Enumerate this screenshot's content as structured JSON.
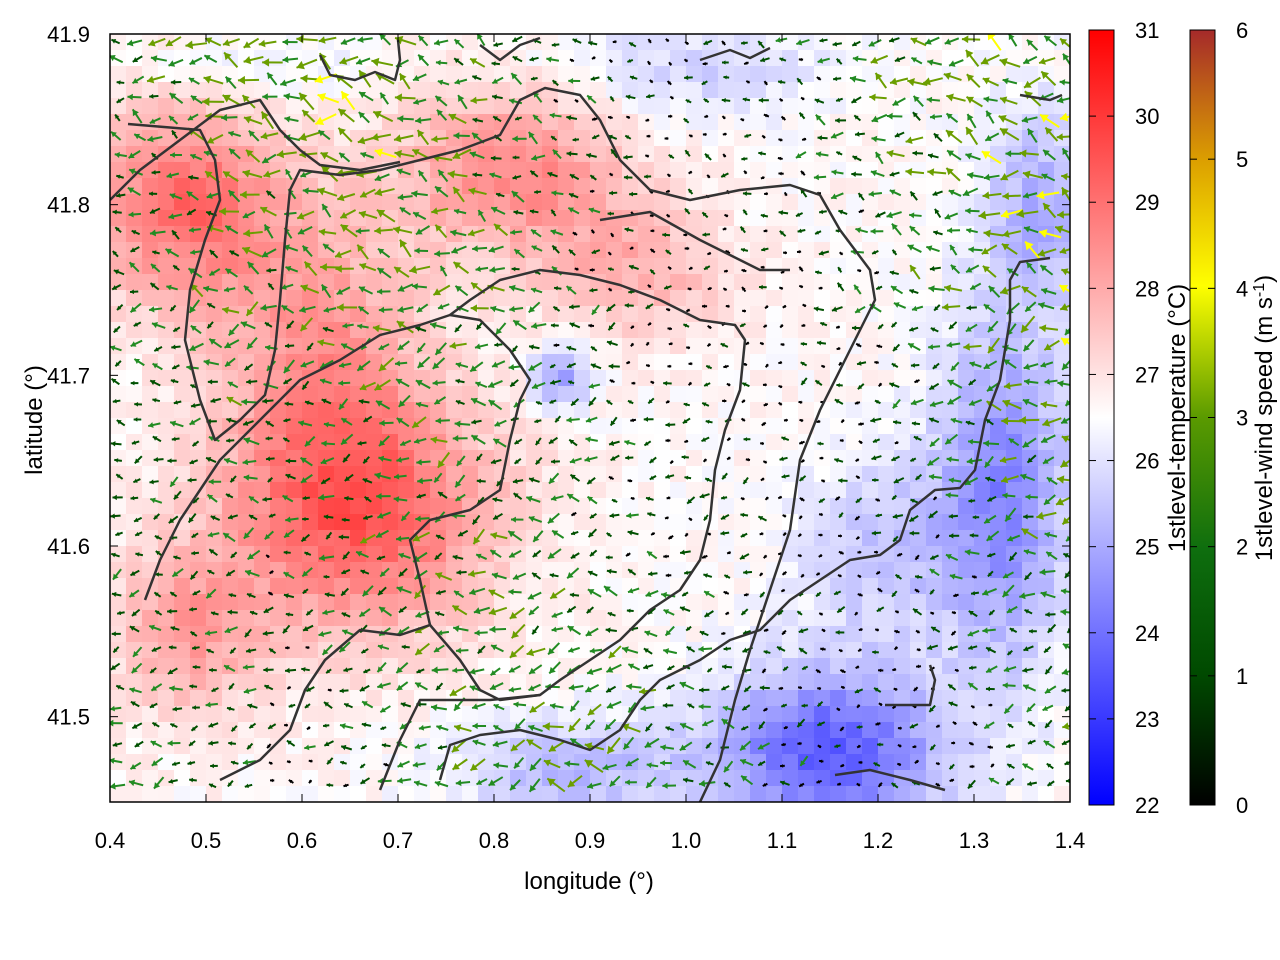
{
  "map": {
    "x_axis": {
      "label": "longitude (°)",
      "range": [
        0.4,
        1.4
      ],
      "ticks": [
        "0.4",
        "0.5",
        "0.6",
        "0.7",
        "0.8",
        "0.9",
        "1.0",
        "1.1",
        "1.2",
        "1.3",
        "1.4"
      ]
    },
    "y_axis": {
      "label": "latitude (°)",
      "range": [
        41.45,
        41.9
      ],
      "ticks": [
        "41.5",
        "41.6",
        "41.7",
        "41.8",
        "41.9"
      ]
    },
    "temperature_colorbar": {
      "label": "1stlevel-temperature (°C)",
      "range": [
        22,
        31
      ],
      "ticks": [
        "22",
        "23",
        "24",
        "25",
        "26",
        "27",
        "28",
        "29",
        "30",
        "31"
      ],
      "colors": [
        "#0000ff",
        "#ffffff",
        "#ff0000"
      ]
    },
    "wind_colorbar": {
      "label_prefix": "1stlevel-wind speed (m s",
      "label_exponent": "-1",
      "label_suffix": ")",
      "range": [
        0,
        6
      ],
      "ticks": [
        "0",
        "1",
        "2",
        "3",
        "4",
        "5",
        "6"
      ],
      "colors": [
        "#000000",
        "#005000",
        "#228b22",
        "#6b9e00",
        "#ffff00",
        "#e1a000",
        "#a52a2a"
      ]
    },
    "boundary_color": "#333333",
    "layers": [
      "temperature-field",
      "wind-arrows",
      "region-boundaries"
    ]
  }
}
